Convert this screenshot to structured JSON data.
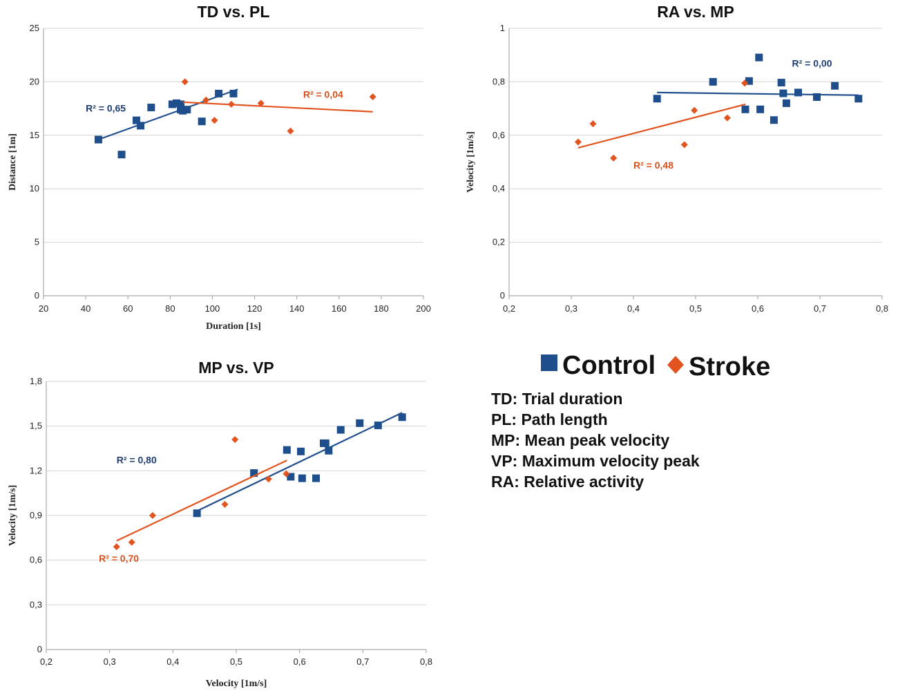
{
  "colors": {
    "control": "#1f4e8c",
    "stroke": "#e2541f",
    "control_text": "#1f3f73",
    "stroke_text": "#d5521e"
  },
  "legend": {
    "control_label": "Control",
    "stroke_label": "Stroke"
  },
  "abbreviations": [
    "TD: Trial duration",
    "PL: Path length",
    "MP: Mean peak velocity",
    "VP: Maximum velocity peak",
    "RA: Relative activity"
  ],
  "chart_data": [
    {
      "id": "tdpl",
      "type": "scatter",
      "title": "TD vs. PL",
      "xlabel": "Duration [1s]",
      "ylabel": "Distance [1m]",
      "xlim": [
        20,
        200
      ],
      "ylim": [
        0,
        25
      ],
      "xticks": [
        "20",
        "40",
        "60",
        "80",
        "100",
        "120",
        "140",
        "160",
        "180",
        "200"
      ],
      "yticks": [
        "0",
        "5",
        "10",
        "15",
        "20",
        "25"
      ],
      "series": [
        {
          "name": "Control",
          "points": [
            [
              46,
              14.6
            ],
            [
              57,
              13.2
            ],
            [
              64,
              16.4
            ],
            [
              66,
              15.9
            ],
            [
              71,
              17.6
            ],
            [
              81,
              17.9
            ],
            [
              83,
              18.0
            ],
            [
              85,
              17.9
            ],
            [
              85,
              17.4
            ],
            [
              86,
              17.3
            ],
            [
              88,
              17.4
            ],
            [
              95,
              16.3
            ],
            [
              103,
              18.9
            ],
            [
              110,
              18.9
            ]
          ],
          "trend": [
            [
              46,
              14.6
            ],
            [
              112,
              19.3
            ]
          ],
          "r2_label": "R² = 0,65",
          "r2_at": [
            40,
            17.2
          ]
        },
        {
          "name": "Stroke",
          "points": [
            [
              87,
              20.0
            ],
            [
              97,
              18.3
            ],
            [
              101,
              16.4
            ],
            [
              109,
              17.9
            ],
            [
              123,
              18.0
            ],
            [
              137,
              15.4
            ],
            [
              176,
              18.6
            ]
          ],
          "trend": [
            [
              86,
              18.1
            ],
            [
              176,
              17.2
            ]
          ],
          "r2_label": "R² = 0,04",
          "r2_at": [
            143,
            18.5
          ]
        }
      ]
    },
    {
      "id": "ramp",
      "type": "scatter",
      "title": "RA vs. MP",
      "xlabel": "",
      "ylabel": "Velocity [1m/s]",
      "xlim": [
        0.2,
        0.8
      ],
      "ylim": [
        0,
        1
      ],
      "xticks": [
        "0,2",
        "0,3",
        "0,4",
        "0,5",
        "0,6",
        "0,7",
        "0,8"
      ],
      "yticks": [
        "0",
        "0,2",
        "0,4",
        "0,6",
        "0,8",
        "1"
      ],
      "series": [
        {
          "name": "Control",
          "points": [
            [
              0.438,
              0.737
            ],
            [
              0.528,
              0.8
            ],
            [
              0.58,
              0.697
            ],
            [
              0.586,
              0.803
            ],
            [
              0.602,
              0.891
            ],
            [
              0.604,
              0.697
            ],
            [
              0.626,
              0.657
            ],
            [
              0.638,
              0.797
            ],
            [
              0.641,
              0.757
            ],
            [
              0.646,
              0.72
            ],
            [
              0.665,
              0.76
            ],
            [
              0.695,
              0.743
            ],
            [
              0.724,
              0.785
            ],
            [
              0.762,
              0.737
            ]
          ],
          "trend": [
            [
              0.438,
              0.76
            ],
            [
              0.762,
              0.75
            ]
          ],
          "r2_label": "R² = 0,00",
          "r2_at": [
            0.655,
            0.857
          ]
        },
        {
          "name": "Stroke",
          "points": [
            [
              0.311,
              0.575
            ],
            [
              0.335,
              0.643
            ],
            [
              0.368,
              0.515
            ],
            [
              0.482,
              0.565
            ],
            [
              0.498,
              0.693
            ],
            [
              0.551,
              0.665
            ],
            [
              0.579,
              0.795
            ]
          ],
          "trend": [
            [
              0.311,
              0.553
            ],
            [
              0.58,
              0.716
            ]
          ],
          "r2_label": "R² = 0,48",
          "r2_at": [
            0.4,
            0.475
          ]
        }
      ]
    },
    {
      "id": "mpvp",
      "type": "scatter",
      "title": "MP vs. VP",
      "xlabel": "Velocity [1m/s]",
      "ylabel": "Velocity [1m/s]",
      "xlim": [
        0.2,
        0.8
      ],
      "ylim": [
        0,
        1.8
      ],
      "xticks": [
        "0,2",
        "0,3",
        "0,4",
        "0,5",
        "0,6",
        "0,7",
        "0,8"
      ],
      "yticks": [
        "0",
        "0,3",
        "0,6",
        "0,9",
        "1,2",
        "1,5",
        "1,8"
      ],
      "series": [
        {
          "name": "Control",
          "points": [
            [
              0.438,
              0.915
            ],
            [
              0.528,
              1.185
            ],
            [
              0.58,
              1.34
            ],
            [
              0.586,
              1.16
            ],
            [
              0.602,
              1.33
            ],
            [
              0.604,
              1.15
            ],
            [
              0.626,
              1.15
            ],
            [
              0.638,
              1.385
            ],
            [
              0.641,
              1.385
            ],
            [
              0.646,
              1.335
            ],
            [
              0.665,
              1.475
            ],
            [
              0.695,
              1.52
            ],
            [
              0.724,
              1.505
            ],
            [
              0.762,
              1.56
            ]
          ],
          "trend": [
            [
              0.438,
              0.93
            ],
            [
              0.762,
              1.59
            ]
          ],
          "r2_label": "R² = 0,80",
          "r2_at": [
            0.311,
            1.25
          ]
        },
        {
          "name": "Stroke",
          "points": [
            [
              0.311,
              0.69
            ],
            [
              0.335,
              0.72
            ],
            [
              0.368,
              0.9
            ],
            [
              0.482,
              0.975
            ],
            [
              0.498,
              1.41
            ],
            [
              0.551,
              1.145
            ],
            [
              0.579,
              1.18
            ]
          ],
          "trend": [
            [
              0.311,
              0.73
            ],
            [
              0.58,
              1.27
            ]
          ],
          "r2_label": "R² = 0,70",
          "r2_at": [
            0.283,
            0.59
          ]
        }
      ]
    }
  ]
}
